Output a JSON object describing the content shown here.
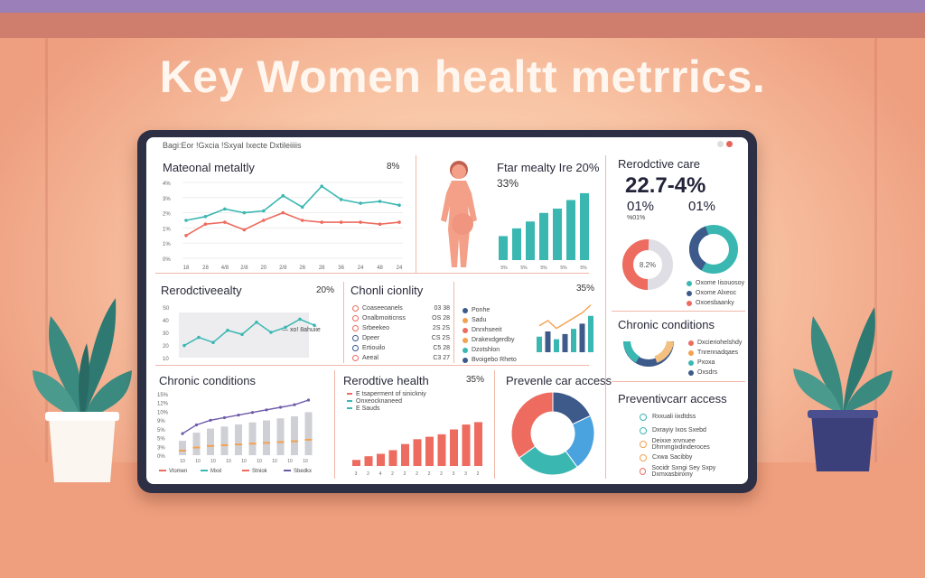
{
  "headline": "Key Women healtt metrrics.",
  "screen_title": "Bagi:Eor !Gxcia !Sxyal Ixecte Dxtileiiiis",
  "colors": {
    "teal": "#3bb7b2",
    "coral": "#ee6b5f",
    "navy": "#3d5a8a",
    "orange": "#f3a250",
    "purple": "#6e5aa8",
    "gray": "#cfcfd6"
  },
  "panels": {
    "maternal": {
      "title": "Mateonal metaltly",
      "pct": "8%",
      "y_ticks": [
        "4%",
        "3%",
        "2%",
        "1%",
        "1%",
        "0%"
      ],
      "x_ticks": [
        "18",
        "28",
        "4/8",
        "2/8",
        "20",
        "2/8",
        "26",
        "28",
        "36",
        "24",
        "48",
        "24"
      ],
      "chart_data": {
        "type": "line",
        "series": [
          {
            "values": [
              2.0,
              2.2,
              2.6,
              2.4,
              2.5,
              3.3,
              2.7,
              3.8,
              3.1,
              2.9,
              3.0,
              2.8
            ]
          },
          {
            "values": [
              1.2,
              1.8,
              1.9,
              1.5,
              2.0,
              2.4,
              2.0,
              1.9,
              1.9,
              1.9,
              1.8,
              1.9
            ]
          }
        ]
      }
    },
    "figure": {
      "title": "Ftar mealty Ire 20%",
      "value": "33%",
      "x_ticks": [
        "5%",
        "5%",
        "5%",
        "5%",
        "5%"
      ],
      "chart_data": {
        "type": "bar",
        "values": [
          28,
          37,
          45,
          55,
          60,
          70,
          78
        ]
      }
    },
    "repro_care": {
      "title": "Rerodctive care",
      "big": "22.7-4%",
      "sub_left": "01%",
      "sub_right": "01%",
      "sub_left_small": "%01%",
      "donut_label": "8.2%",
      "legend": [
        "Oxome Iisouosoy",
        "Oxome Alxeoc",
        "Oxoesbaanky"
      ]
    },
    "repro_line": {
      "title": "Rerodctiveealty",
      "pct": "20%",
      "y_ticks": [
        "S0",
        "40",
        "30",
        "20",
        "10"
      ],
      "legend_note": "— xo! 8ahuiie",
      "chart_data": {
        "type": "area",
        "values": [
          12,
          20,
          15,
          27,
          23,
          35,
          25,
          30,
          38,
          32
        ]
      }
    },
    "chronic_table": {
      "title": "Chonli cionlity",
      "rows": [
        {
          "label": "Coaseeoanels",
          "value": "03 38"
        },
        {
          "label": "Onalbmoiticnss",
          "value": "OS 28"
        },
        {
          "label": "Srbeekeo",
          "value": "2S 2S"
        },
        {
          "label": "Dpeer",
          "value": "CS 2S"
        },
        {
          "label": "Ertiouilo",
          "value": "C5 28"
        },
        {
          "label": "Aeeal",
          "value": "C3 27"
        }
      ]
    },
    "mini_mix": {
      "pct": "35%",
      "legend": [
        "Ponhe",
        "Sadu",
        "Dnrxhseeit",
        "Drakexdgerdby",
        "Dzotshlon",
        "Bvoigebo Rheto"
      ],
      "chart_data": {
        "type": "bar",
        "values": [
          30,
          40,
          25,
          35,
          45,
          55,
          70
        ]
      }
    },
    "chronic_bars": {
      "title": "Chronic conditions",
      "y_ticks": [
        "15%",
        "12%",
        "10%",
        "9%",
        "5%",
        "5%",
        "3%",
        "0%"
      ],
      "x_ticks": [
        "10",
        "10",
        "10",
        "10",
        "10",
        "10",
        "10",
        "10",
        "10"
      ],
      "legend": [
        "Vlomen",
        "Mxxl",
        "Stniok",
        "Sbedkx"
      ],
      "chart_data": {
        "type": "bar",
        "values": [
          3.5,
          5.5,
          6.5,
          7.0,
          7.5,
          8.0,
          8.5,
          9.0,
          9.5,
          10.5
        ]
      }
    },
    "repro_health": {
      "title": "Rerodtive health",
      "pct": "35%",
      "legend": [
        "E tsaperment of sinickniy",
        "Onxeocknaneed",
        "E Sauds"
      ],
      "x_ticks": [
        "3",
        "2",
        "4",
        "2",
        "2",
        "2",
        "2",
        "2",
        "3",
        "3",
        "2"
      ],
      "chart_data": {
        "type": "bar",
        "values": [
          5,
          8,
          10,
          13,
          18,
          22,
          24,
          26,
          30,
          34,
          36
        ]
      }
    },
    "prev_donut": {
      "title": "Prevenle car access",
      "chart_data": {
        "type": "pie",
        "values": [
          18,
          22,
          25,
          35
        ]
      }
    },
    "chronic_side": {
      "title": "Chronic conditions",
      "legend": [
        "Dxcieriohelshdy",
        "Tnrennadqaes",
        "Pxoxa",
        "Oxsdrs"
      ]
    },
    "prev_list": {
      "title": "Preventivcarr access",
      "items": [
        "Rxxuali iixdtdss",
        "Dxrayiy Ixos Sxebd",
        "Deixxe xrvnuee Dhrnmgixdinderoces",
        "Cxwa Sacibby",
        "Socidr Sxngi Sey Sxpy Dxmxasbinxny"
      ]
    }
  }
}
